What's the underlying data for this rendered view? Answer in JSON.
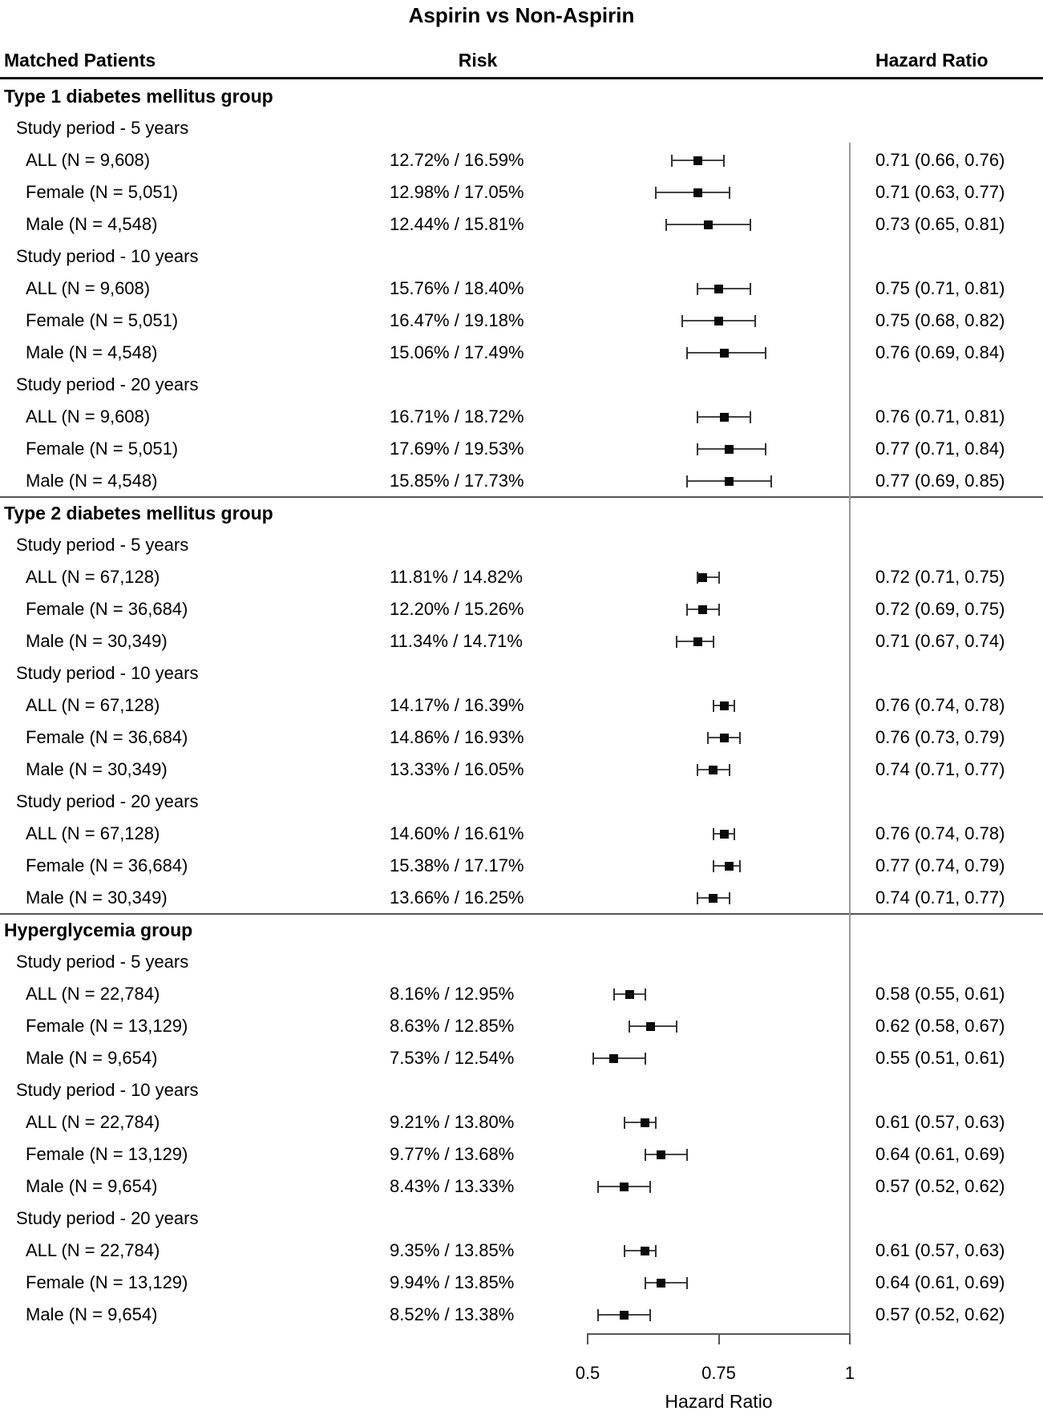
{
  "title": "Aspirin vs Non-Aspirin",
  "columns": {
    "patients": "Matched Patients",
    "risk": "Risk",
    "hazard": "Hazard Ratio"
  },
  "colors": {
    "text": "#000000",
    "reference_line": "#999999",
    "whisker": "#444444",
    "marker": "#0a0a0a",
    "separator": "#555555",
    "header_rule": "#111111",
    "background": "#ffffff"
  },
  "chart_data": {
    "type": "forest",
    "title": "Aspirin vs Non-Aspirin",
    "axis": {
      "min": 0.5,
      "max": 1.0,
      "ticks": [
        0.5,
        0.75,
        1
      ],
      "tick_labels": [
        "0.5",
        "0.75",
        "1"
      ],
      "scale": "linear",
      "xlabel": "Hazard Ratio",
      "reference_value": 1
    },
    "groups": [
      {
        "name": "Type 1 diabetes mellitus group",
        "periods": [
          {
            "label": "Study period - 5 years",
            "rows": [
              {
                "label": "ALL (N = 9,608)",
                "risk": "12.72% / 16.59%",
                "hr": 0.71,
                "lo": 0.66,
                "hi": 0.76,
                "hr_text": "0.71 (0.66, 0.76)"
              },
              {
                "label": "Female (N = 5,051)",
                "risk": "12.98% / 17.05%",
                "hr": 0.71,
                "lo": 0.63,
                "hi": 0.77,
                "hr_text": "0.71 (0.63, 0.77)"
              },
              {
                "label": "Male (N = 4,548)",
                "risk": "12.44% / 15.81%",
                "hr": 0.73,
                "lo": 0.65,
                "hi": 0.81,
                "hr_text": "0.73 (0.65, 0.81)"
              }
            ]
          },
          {
            "label": "Study period - 10 years",
            "rows": [
              {
                "label": "ALL (N = 9,608)",
                "risk": "15.76% / 18.40%",
                "hr": 0.75,
                "lo": 0.71,
                "hi": 0.81,
                "hr_text": "0.75 (0.71, 0.81)"
              },
              {
                "label": "Female (N = 5,051)",
                "risk": "16.47% / 19.18%",
                "hr": 0.75,
                "lo": 0.68,
                "hi": 0.82,
                "hr_text": "0.75 (0.68, 0.82)"
              },
              {
                "label": "Male (N = 4,548)",
                "risk": "15.06% / 17.49%",
                "hr": 0.76,
                "lo": 0.69,
                "hi": 0.84,
                "hr_text": "0.76 (0.69, 0.84)"
              }
            ]
          },
          {
            "label": "Study period - 20 years",
            "rows": [
              {
                "label": "ALL (N = 9,608)",
                "risk": "16.71% / 18.72%",
                "hr": 0.76,
                "lo": 0.71,
                "hi": 0.81,
                "hr_text": "0.76 (0.71, 0.81)"
              },
              {
                "label": "Female (N = 5,051)",
                "risk": "17.69% / 19.53%",
                "hr": 0.77,
                "lo": 0.71,
                "hi": 0.84,
                "hr_text": "0.77 (0.71, 0.84)"
              },
              {
                "label": "Male (N = 4,548)",
                "risk": "15.85% / 17.73%",
                "hr": 0.77,
                "lo": 0.69,
                "hi": 0.85,
                "hr_text": "0.77 (0.69, 0.85)"
              }
            ]
          }
        ]
      },
      {
        "name": "Type 2 diabetes mellitus group",
        "periods": [
          {
            "label": "Study period - 5 years",
            "rows": [
              {
                "label": "ALL (N = 67,128)",
                "risk": "11.81% / 14.82%",
                "hr": 0.72,
                "lo": 0.71,
                "hi": 0.75,
                "hr_text": "0.72 (0.71, 0.75)"
              },
              {
                "label": "Female (N = 36,684)",
                "risk": "12.20% / 15.26%",
                "hr": 0.72,
                "lo": 0.69,
                "hi": 0.75,
                "hr_text": "0.72 (0.69, 0.75)"
              },
              {
                "label": "Male (N = 30,349)",
                "risk": "11.34% / 14.71%",
                "hr": 0.71,
                "lo": 0.67,
                "hi": 0.74,
                "hr_text": "0.71 (0.67, 0.74)"
              }
            ]
          },
          {
            "label": "Study period - 10 years",
            "rows": [
              {
                "label": "ALL (N = 67,128)",
                "risk": "14.17% / 16.39%",
                "hr": 0.76,
                "lo": 0.74,
                "hi": 0.78,
                "hr_text": "0.76 (0.74, 0.78)"
              },
              {
                "label": "Female (N = 36,684)",
                "risk": "14.86% / 16.93%",
                "hr": 0.76,
                "lo": 0.73,
                "hi": 0.79,
                "hr_text": "0.76 (0.73, 0.79)"
              },
              {
                "label": "Male (N = 30,349)",
                "risk": "13.33% / 16.05%",
                "hr": 0.74,
                "lo": 0.71,
                "hi": 0.77,
                "hr_text": "0.74 (0.71, 0.77)"
              }
            ]
          },
          {
            "label": "Study period - 20 years",
            "rows": [
              {
                "label": "ALL (N = 67,128)",
                "risk": "14.60% / 16.61%",
                "hr": 0.76,
                "lo": 0.74,
                "hi": 0.78,
                "hr_text": "0.76 (0.74, 0.78)"
              },
              {
                "label": "Female (N = 36,684)",
                "risk": "15.38% / 17.17%",
                "hr": 0.77,
                "lo": 0.74,
                "hi": 0.79,
                "hr_text": "0.77 (0.74, 0.79)"
              },
              {
                "label": "Male (N = 30,349)",
                "risk": "13.66% / 16.25%",
                "hr": 0.74,
                "lo": 0.71,
                "hi": 0.77,
                "hr_text": "0.74 (0.71, 0.77)"
              }
            ]
          }
        ]
      },
      {
        "name": "Hyperglycemia group",
        "periods": [
          {
            "label": "Study period - 5 years",
            "rows": [
              {
                "label": "ALL (N = 22,784)",
                "risk": "8.16% / 12.95%",
                "hr": 0.58,
                "lo": 0.55,
                "hi": 0.61,
                "hr_text": "0.58 (0.55, 0.61)"
              },
              {
                "label": "Female (N = 13,129)",
                "risk": "8.63% / 12.85%",
                "hr": 0.62,
                "lo": 0.58,
                "hi": 0.67,
                "hr_text": "0.62 (0.58, 0.67)"
              },
              {
                "label": "Male (N = 9,654)",
                "risk": "7.53% / 12.54%",
                "hr": 0.55,
                "lo": 0.51,
                "hi": 0.61,
                "hr_text": "0.55 (0.51, 0.61)"
              }
            ]
          },
          {
            "label": "Study period - 10 years",
            "rows": [
              {
                "label": "ALL (N = 22,784)",
                "risk": "9.21% / 13.80%",
                "hr": 0.61,
                "lo": 0.57,
                "hi": 0.63,
                "hr_text": "0.61 (0.57, 0.63)"
              },
              {
                "label": "Female (N = 13,129)",
                "risk": "9.77% / 13.68%",
                "hr": 0.64,
                "lo": 0.61,
                "hi": 0.69,
                "hr_text": "0.64 (0.61, 0.69)"
              },
              {
                "label": "Male (N = 9,654)",
                "risk": "8.43% / 13.33%",
                "hr": 0.57,
                "lo": 0.52,
                "hi": 0.62,
                "hr_text": "0.57 (0.52, 0.62)"
              }
            ]
          },
          {
            "label": "Study period - 20 years",
            "rows": [
              {
                "label": "ALL (N = 22,784)",
                "risk": "9.35% / 13.85%",
                "hr": 0.61,
                "lo": 0.57,
                "hi": 0.63,
                "hr_text": "0.61 (0.57, 0.63)"
              },
              {
                "label": "Female (N = 13,129)",
                "risk": "9.94% / 13.85%",
                "hr": 0.64,
                "lo": 0.61,
                "hi": 0.69,
                "hr_text": "0.64 (0.61, 0.69)"
              },
              {
                "label": "Male (N = 9,654)",
                "risk": "8.52% / 13.38%",
                "hr": 0.57,
                "lo": 0.52,
                "hi": 0.62,
                "hr_text": "0.57 (0.52, 0.62)"
              }
            ]
          }
        ]
      }
    ]
  }
}
